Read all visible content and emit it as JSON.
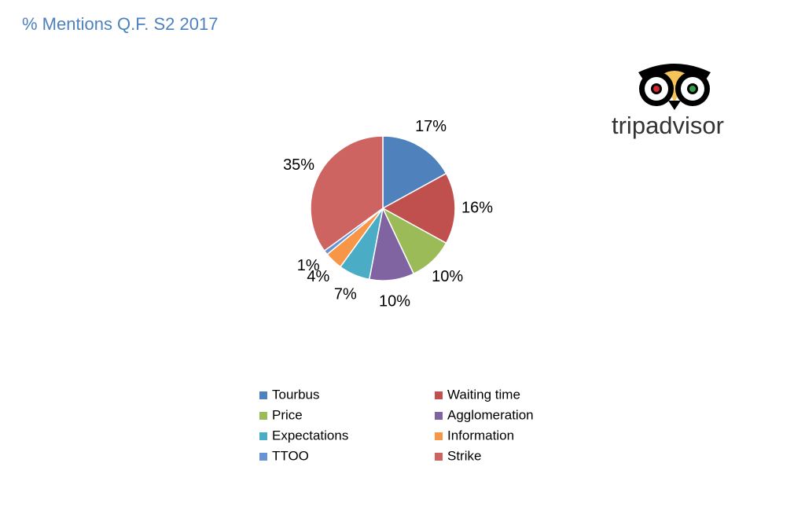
{
  "chart_data": {
    "type": "pie",
    "title": "% Mentions Q.F. S2 2017",
    "categories": [
      "Tourbus",
      "Waiting time",
      "Price",
      "Agglomeration",
      "Expectations",
      "Information",
      "TTOO",
      "Strike"
    ],
    "values": [
      17,
      16,
      10,
      10,
      7,
      4,
      1,
      35
    ],
    "value_labels": [
      "17%",
      "16%",
      "10%",
      "10%",
      "7%",
      "4%",
      "1%",
      "35%"
    ],
    "colors": [
      "#4f81bd",
      "#c0504d",
      "#9bbb59",
      "#8064a2",
      "#4bacc6",
      "#f79646",
      "#6a93d4",
      "#cd6461"
    ],
    "legend": "bottom"
  },
  "logo": {
    "text": "tripadvisor"
  }
}
